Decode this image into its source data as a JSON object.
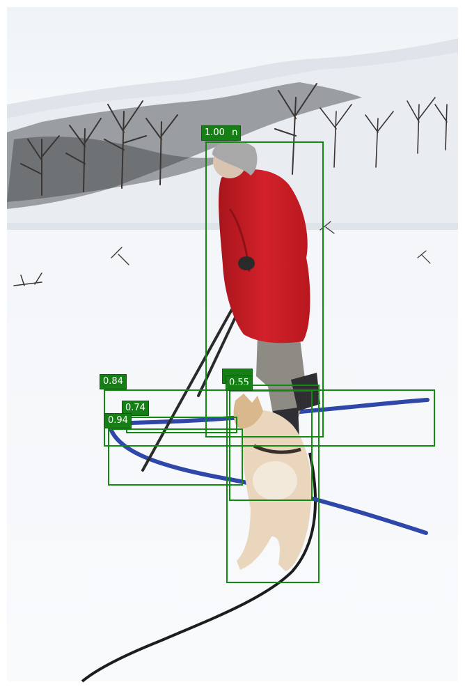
{
  "image": {
    "description_colors": {
      "box": "#128a12",
      "label_bg": "#157f15",
      "label_text": "#ffffff",
      "snow": "#f4f6f8",
      "sky": "#eef3f6",
      "jacket": "#c81c24",
      "skis": "#2f47a8"
    }
  },
  "detections": [
    {
      "score": "1.00",
      "extra": "n"
    },
    {
      "score": "0.84"
    },
    {
      "score": "0.74"
    },
    {
      "score": "0.94"
    },
    {
      "score": "0.55"
    },
    {
      "score": ""
    }
  ]
}
